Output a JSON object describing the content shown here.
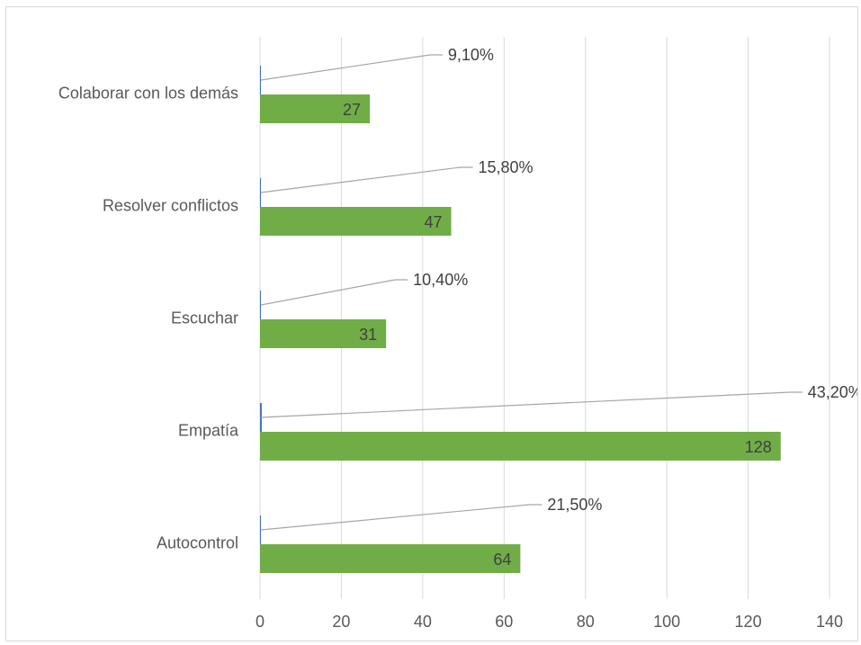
{
  "chart_data": {
    "type": "bar",
    "orientation": "horizontal",
    "title": "",
    "xlabel": "",
    "ylabel": "",
    "categories": [
      "Colaborar con los demás",
      "Resolver conflictos",
      "Escuchar",
      "Empatía",
      "Autocontrol"
    ],
    "series": [
      {
        "values": [
          27,
          47,
          31,
          128,
          64
        ],
        "value_labels": [
          "27",
          "47",
          "31",
          "128",
          "64"
        ],
        "color": "#70ad47"
      },
      {
        "values": [
          0.091,
          0.158,
          0.104,
          0.432,
          0.215
        ],
        "value_labels": [
          "9,10%",
          "15,80%",
          "10,40%",
          "43,20%",
          "21,50%"
        ],
        "color": "#4472c4"
      }
    ],
    "xlim": [
      0,
      140
    ],
    "xticks": [
      "0",
      "20",
      "40",
      "60",
      "80",
      "100",
      "120",
      "140"
    ],
    "grid": "vertical",
    "legend": "none"
  }
}
